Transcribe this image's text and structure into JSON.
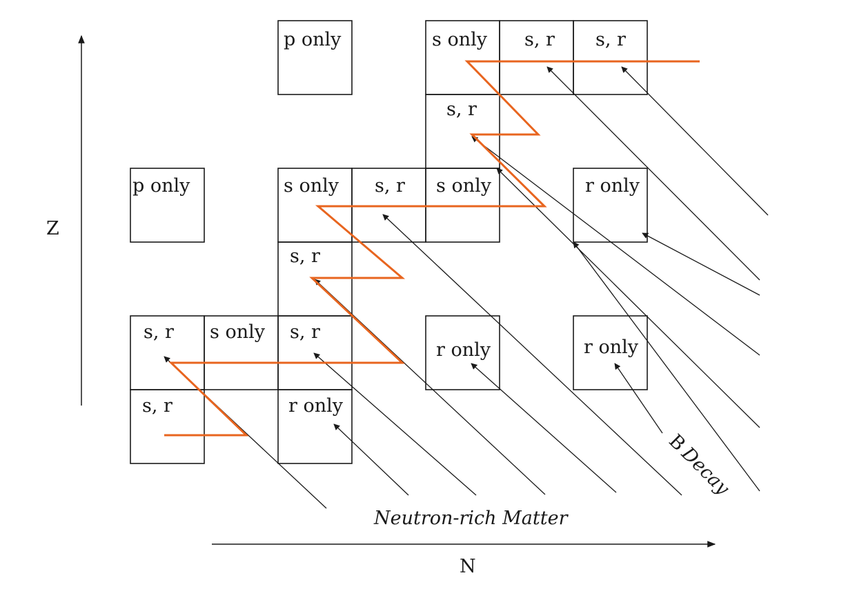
{
  "axes": {
    "y_label": "Z",
    "x_label": "N"
  },
  "labels": {
    "neutron_rich": "Neutron-rich Matter",
    "beta_letter": "B",
    "decay_word": "Decay"
  },
  "colors": {
    "process_path": "#e8651f",
    "lines": "#1a1a1a"
  },
  "cells": [
    {
      "name": "cell-p-only-top",
      "label": "p only"
    },
    {
      "name": "cell-s-only-top",
      "label": "s only"
    },
    {
      "name": "cell-sr-top-1",
      "label": "s, r"
    },
    {
      "name": "cell-sr-top-2",
      "label": "s, r"
    },
    {
      "name": "cell-sr-upper-mid",
      "label": "s, r"
    },
    {
      "name": "cell-p-only-left",
      "label": "p only"
    },
    {
      "name": "cell-s-only-mid-1",
      "label": "s only"
    },
    {
      "name": "cell-sr-mid",
      "label": "s, r"
    },
    {
      "name": "cell-s-only-mid-2",
      "label": "s only"
    },
    {
      "name": "cell-r-only-upper-right",
      "label": "r only"
    },
    {
      "name": "cell-sr-center",
      "label": "s, r"
    },
    {
      "name": "cell-sr-lower-left",
      "label": "s, r"
    },
    {
      "name": "cell-s-only-lower",
      "label": "s only"
    },
    {
      "name": "cell-sr-lower-mid",
      "label": "s, r"
    },
    {
      "name": "cell-r-only-lower-1",
      "label": "r only"
    },
    {
      "name": "cell-r-only-lower-2",
      "label": "r only"
    },
    {
      "name": "cell-sr-bottom-left",
      "label": "s, r"
    },
    {
      "name": "cell-r-only-bottom",
      "label": "r only"
    }
  ]
}
